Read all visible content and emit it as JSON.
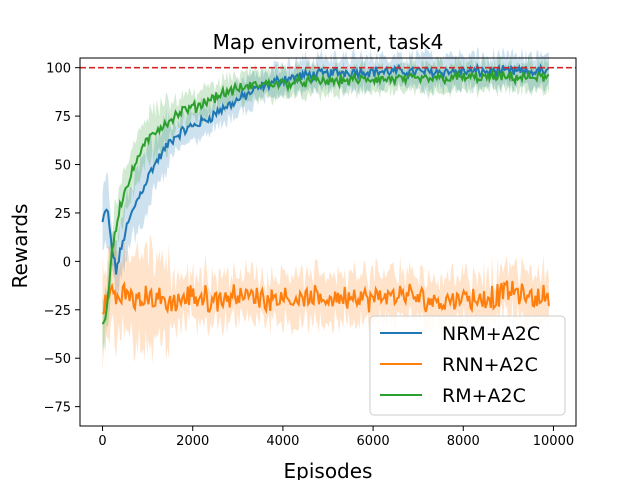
{
  "chart_data": {
    "type": "line",
    "title": "Map enviroment, task4",
    "xlabel": "Episodes",
    "ylabel": "Rewards",
    "xlim": [
      -500,
      10500
    ],
    "ylim": [
      -85,
      105
    ],
    "xticks": [
      0,
      2000,
      4000,
      6000,
      8000,
      10000
    ],
    "xtick_labels": [
      "0",
      "2000",
      "4000",
      "6000",
      "8000",
      "10000"
    ],
    "yticks": [
      -75,
      -50,
      -25,
      0,
      25,
      50,
      75,
      100
    ],
    "ytick_labels": [
      "−75",
      "−50",
      "−25",
      "0",
      "25",
      "50",
      "75",
      "100"
    ],
    "grid": false,
    "legend_position": "lower-right",
    "reference_line": {
      "y": 100,
      "style": "dashed",
      "color": "#d62728"
    },
    "series": [
      {
        "name": "NRM+A2C",
        "color": "#1f77b4",
        "x": [
          0,
          100,
          200,
          300,
          400,
          500,
          700,
          900,
          1100,
          1300,
          1500,
          1700,
          2000,
          2300,
          2600,
          2900,
          3200,
          3500,
          4000,
          4500,
          5000,
          5500,
          6000,
          7000,
          8000,
          9000,
          9900
        ],
        "y": [
          20,
          28,
          8,
          -5,
          5,
          15,
          28,
          38,
          48,
          55,
          62,
          66,
          70,
          73,
          78,
          82,
          86,
          90,
          94,
          96,
          97,
          98,
          98,
          98,
          98,
          98,
          98
        ],
        "band": 8
      },
      {
        "name": "RNN+A2C",
        "color": "#ff7f0e",
        "x": [
          0,
          100,
          200,
          300,
          500,
          800,
          1000,
          1500,
          2000,
          2500,
          3000,
          3500,
          4000,
          4500,
          5000,
          5500,
          6000,
          6500,
          7000,
          7500,
          8000,
          8500,
          9000,
          9500,
          9900
        ],
        "y": [
          -25,
          -20,
          -15,
          -18,
          -17,
          -20,
          -18,
          -22,
          -18,
          -20,
          -17,
          -19,
          -18,
          -20,
          -19,
          -18,
          -20,
          -17,
          -19,
          -21,
          -18,
          -20,
          -15,
          -19,
          -18
        ],
        "band": 12
      },
      {
        "name": "RM+A2C",
        "color": "#2ca02c",
        "x": [
          0,
          100,
          200,
          300,
          400,
          600,
          800,
          1000,
          1200,
          1500,
          1800,
          2100,
          2400,
          2700,
          3000,
          3400,
          3800,
          4200,
          4600,
          5000,
          6000,
          7000,
          8000,
          9000,
          9900
        ],
        "y": [
          -32,
          -25,
          5,
          18,
          30,
          42,
          55,
          62,
          68,
          73,
          78,
          80,
          84,
          87,
          89,
          91,
          92,
          92,
          93,
          93,
          94,
          94,
          95,
          95,
          95
        ],
        "band": 7
      }
    ]
  }
}
